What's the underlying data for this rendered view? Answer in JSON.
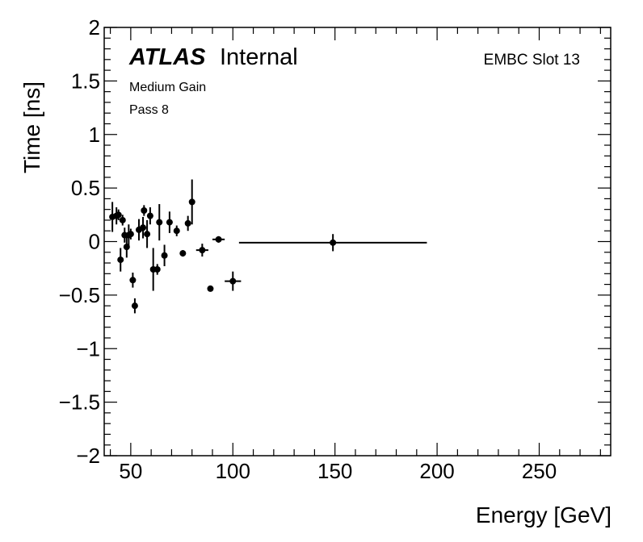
{
  "chart_data": {
    "type": "scatter",
    "title": "",
    "xlabel": "Energy [GeV]",
    "ylabel": "Time [ns]",
    "xlim": [
      37,
      285
    ],
    "ylim": [
      -2,
      2
    ],
    "x_ticks": [
      50,
      100,
      150,
      200,
      250
    ],
    "x_tick_labels": [
      "50",
      "100",
      "150",
      "200",
      "250"
    ],
    "y_ticks": [
      -2,
      -1.5,
      -1,
      -0.5,
      0,
      0.5,
      1,
      1.5,
      2
    ],
    "y_tick_labels": [
      "−2",
      "−1.5",
      "−1",
      "−0.5",
      "0",
      "0.5",
      "1",
      "1.5",
      "2"
    ],
    "annotations": {
      "atlas": "ATLAS",
      "atlas_suffix": "Internal",
      "gain": "Medium Gain",
      "pass": "Pass 8",
      "slot": "EMBC Slot 13"
    },
    "series": [
      {
        "name": "EMBC Slot 13",
        "points": [
          {
            "x": 41,
            "y": 0.23,
            "yerr": 0.14,
            "xerr": 0
          },
          {
            "x": 43,
            "y": 0.24,
            "yerr": 0.08,
            "xerr": 0
          },
          {
            "x": 44,
            "y": 0.25,
            "yerr": 0.05,
            "xerr": 0
          },
          {
            "x": 45,
            "y": -0.17,
            "yerr": 0.11,
            "xerr": 0
          },
          {
            "x": 46,
            "y": 0.2,
            "yerr": 0.05,
            "xerr": 0
          },
          {
            "x": 47,
            "y": 0.06,
            "yerr": 0.07,
            "xerr": 0
          },
          {
            "x": 48,
            "y": -0.05,
            "yerr": 0.1,
            "xerr": 0
          },
          {
            "x": 49,
            "y": 0.06,
            "yerr": 0.1,
            "xerr": 0
          },
          {
            "x": 50,
            "y": 0.07,
            "yerr": 0.05,
            "xerr": 0
          },
          {
            "x": 51,
            "y": -0.36,
            "yerr": 0.07,
            "xerr": 0
          },
          {
            "x": 52,
            "y": -0.6,
            "yerr": 0.07,
            "xerr": 0
          },
          {
            "x": 54,
            "y": 0.11,
            "yerr": 0.1,
            "xerr": 0
          },
          {
            "x": 56,
            "y": 0.13,
            "yerr": 0.1,
            "xerr": 0
          },
          {
            "x": 56.5,
            "y": 0.29,
            "yerr": 0.05,
            "xerr": 0
          },
          {
            "x": 58,
            "y": 0.07,
            "yerr": 0.13,
            "xerr": 0
          },
          {
            "x": 59.5,
            "y": 0.24,
            "yerr": 0.08,
            "xerr": 0
          },
          {
            "x": 61,
            "y": -0.26,
            "yerr": 0.2,
            "xerr": 0
          },
          {
            "x": 63,
            "y": -0.26,
            "yerr": 0.05,
            "xerr": 0
          },
          {
            "x": 64,
            "y": 0.18,
            "yerr": 0.17,
            "xerr": 0
          },
          {
            "x": 66.5,
            "y": -0.13,
            "yerr": 0.1,
            "xerr": 0
          },
          {
            "x": 69,
            "y": 0.18,
            "yerr": 0.1,
            "xerr": 0
          },
          {
            "x": 72.5,
            "y": 0.1,
            "yerr": 0.05,
            "xerr": 1.5
          },
          {
            "x": 75.5,
            "y": -0.11,
            "yerr": 0.03,
            "xerr": 0
          },
          {
            "x": 78,
            "y": 0.17,
            "yerr": 0.07,
            "xerr": 0
          },
          {
            "x": 80,
            "y": 0.37,
            "yerr": 0.21,
            "xerr": 0
          },
          {
            "x": 85,
            "y": -0.08,
            "yerr": 0.06,
            "xerr": 3
          },
          {
            "x": 89,
            "y": -0.44,
            "yerr": 0.02,
            "xerr": 0
          },
          {
            "x": 93,
            "y": 0.02,
            "yerr": 0.03,
            "xerr": 3
          },
          {
            "x": 100,
            "y": -0.37,
            "yerr": 0.09,
            "xerr": 4
          },
          {
            "x": 149,
            "y": -0.01,
            "yerr": 0.08,
            "xerr": 46
          }
        ]
      }
    ]
  }
}
